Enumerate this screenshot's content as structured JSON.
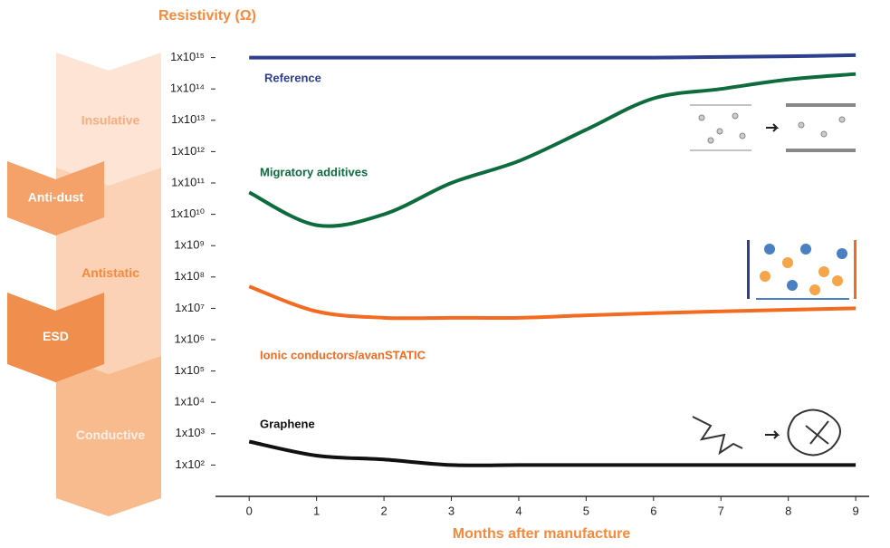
{
  "chart_data": {
    "type": "line",
    "y_label": "Resistivity (Ω)",
    "x_label": "Months after manufacture",
    "log_y": true,
    "x": [
      0,
      1,
      2,
      3,
      4,
      5,
      6,
      7,
      8,
      9
    ],
    "xlim": [
      -0.5,
      9.2
    ],
    "xticks": [
      0,
      1,
      2,
      3,
      4,
      5,
      6,
      7,
      8,
      9
    ],
    "ylim": [
      10,
      1e+16
    ],
    "yticks": [
      {
        "value": 1000000000000000.0,
        "label": "1x10¹⁵"
      },
      {
        "value": 100000000000000.0,
        "label": "1x10¹⁴"
      },
      {
        "value": 10000000000000.0,
        "label": "1x10¹³"
      },
      {
        "value": 1000000000000.0,
        "label": "1x10¹²"
      },
      {
        "value": 100000000000.0,
        "label": "1x10¹¹"
      },
      {
        "value": 10000000000.0,
        "label": "1x10¹⁰"
      },
      {
        "value": 1000000000.0,
        "label": "1x10⁹"
      },
      {
        "value": 100000000.0,
        "label": "1x10⁸"
      },
      {
        "value": 10000000.0,
        "label": "1x10⁷"
      },
      {
        "value": 1000000.0,
        "label": "1x10⁶"
      },
      {
        "value": 100000.0,
        "label": "1x10⁵"
      },
      {
        "value": 10000.0,
        "label": "1x10⁴"
      },
      {
        "value": 1000.0,
        "label": "1x10³"
      },
      {
        "value": 100,
        "label": "1x10²"
      }
    ],
    "series": [
      {
        "name": "Reference",
        "color": "#2e3f8f",
        "values": [
          1000000000000000.0,
          1000000000000000.0,
          1000000000000000.0,
          1000000000000000.0,
          1000000000000000.0,
          1000000000000000.0,
          1000000000000000.0,
          1050000000000000.0,
          1100000000000000.0,
          1200000000000000.0
        ]
      },
      {
        "name": "Migratory additives",
        "color": "#0e6b3e",
        "values": [
          50000000000.0,
          4500000000.0,
          10000000000.0,
          100000000000.0,
          500000000000.0,
          5000000000000.0,
          50000000000000.0,
          100000000000000.0,
          200000000000000.0,
          300000000000000.0
        ]
      },
      {
        "name": "Ionic conductors/avanSTATIC",
        "color": "#f26b21",
        "values": [
          50000000.0,
          8000000.0,
          5000000.0,
          5000000.0,
          5000000.0,
          6000000.0,
          7000000.0,
          8000000.0,
          9000000.0,
          10000000.0
        ]
      },
      {
        "name": "Graphene",
        "color": "#111111",
        "values": [
          560,
          200,
          150,
          100,
          100,
          100,
          100,
          100,
          100,
          100
        ]
      }
    ],
    "zones": [
      "Insulative",
      "Anti-dust",
      "Antistatic",
      "ESD",
      "Conductive"
    ]
  }
}
